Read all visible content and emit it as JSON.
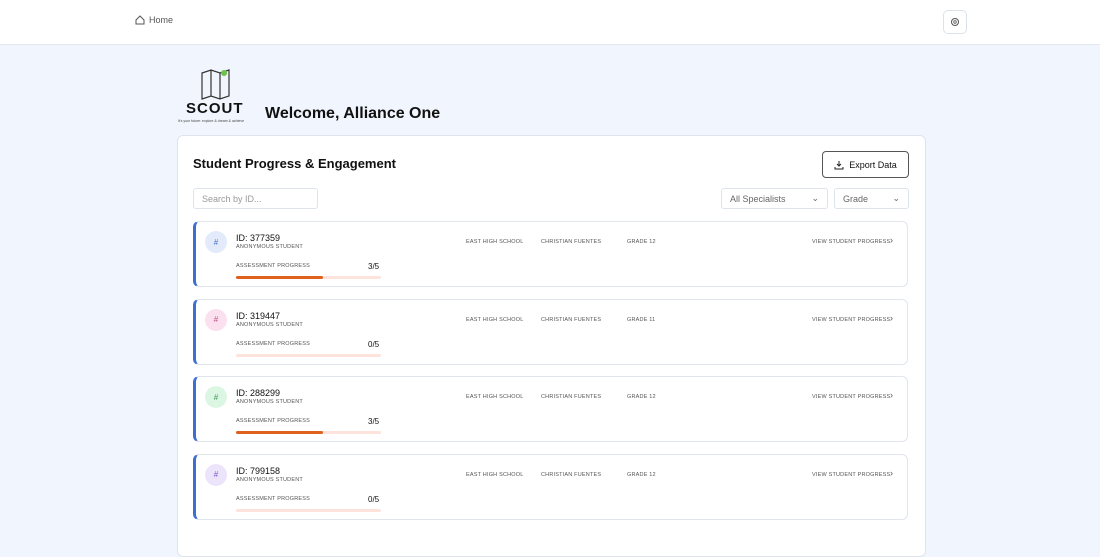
{
  "nav": {
    "home": "Home"
  },
  "logo": {
    "name": "SCOUT",
    "tagline": "It's your future: explore & dream & achieve"
  },
  "header": {
    "welcome": "Welcome, Alliance One"
  },
  "panel": {
    "title": "Student Progress & Engagement",
    "export": "Export Data",
    "search_placeholder": "Search by ID...",
    "specialist_filter": "All Specialists",
    "grade_filter": "Grade"
  },
  "students": [
    {
      "avatar": "#",
      "avatar_color": "#e3ebfb",
      "avatar_text_color": "#4a6fc2",
      "id": "ID: 377359",
      "subtitle": "ANONYMOUS STUDENT",
      "progress_label": "ASSESSMENT PROGRESS",
      "progress": {
        "value": 3,
        "total": 5,
        "label": "3/5"
      },
      "school": "EAST HIGH SCHOOL",
      "specialist": "CHRISTIAN FUENTES",
      "grade": "GRADE 12",
      "action": "VIEW STUDENT PROGRESS"
    },
    {
      "avatar": "#",
      "avatar_color": "#fbe1ef",
      "avatar_text_color": "#c2508c",
      "id": "ID: 319447",
      "subtitle": "ANONYMOUS STUDENT",
      "progress_label": "ASSESSMENT PROGRESS",
      "progress": {
        "value": 0,
        "total": 5,
        "label": "0/5"
      },
      "school": "EAST HIGH SCHOOL",
      "specialist": "CHRISTIAN FUENTES",
      "grade": "GRADE 11",
      "action": "VIEW STUDENT PROGRESS"
    },
    {
      "avatar": "#",
      "avatar_color": "#dcf6e4",
      "avatar_text_color": "#3d9a5d",
      "id": "ID: 288299",
      "subtitle": "ANONYMOUS STUDENT",
      "progress_label": "ASSESSMENT PROGRESS",
      "progress": {
        "value": 3,
        "total": 5,
        "label": "3/5"
      },
      "school": "EAST HIGH SCHOOL",
      "specialist": "CHRISTIAN FUENTES",
      "grade": "GRADE 12",
      "action": "VIEW STUDENT PROGRESS"
    },
    {
      "avatar": "#",
      "avatar_color": "#ece4fb",
      "avatar_text_color": "#7a5ac2",
      "id": "ID: 799158",
      "subtitle": "ANONYMOUS STUDENT",
      "progress_label": "ASSESSMENT PROGRESS",
      "progress": {
        "value": 0,
        "total": 5,
        "label": "0/5"
      },
      "school": "EAST HIGH SCHOOL",
      "specialist": "CHRISTIAN FUENTES",
      "grade": "GRADE 12",
      "action": "VIEW STUDENT PROGRESS"
    }
  ]
}
